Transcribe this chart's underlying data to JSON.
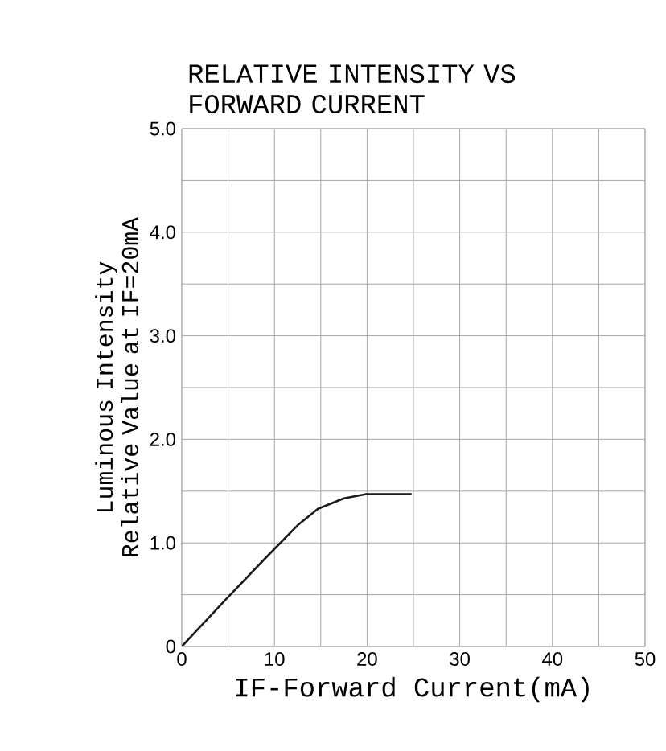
{
  "chart_data": {
    "type": "line",
    "title": "RELATIVE INTENSITY VS FORWARD CURRENT",
    "xlabel": "IF-Forward  Current(mA)",
    "ylabel": "Luminous Intensity Relative Value at IF=20mA",
    "x": [
      0,
      4.6,
      9.1,
      12.5,
      14.7,
      17.5,
      19.8,
      24.8
    ],
    "series": [
      {
        "color": "#1a1a1a",
        "values": [
          0,
          0.44,
          0.86,
          1.17,
          1.33,
          1.43,
          1.47,
          1.47
        ]
      }
    ],
    "xlim": [
      0,
      50
    ],
    "ylim": [
      0,
      5
    ],
    "xticks": [
      0,
      {
        "value": 5,
        "label": null
      },
      10,
      {
        "value": 15,
        "label": null
      },
      20,
      {
        "value": 25,
        "label": null
      },
      30,
      {
        "value": 35,
        "label": null
      },
      40,
      {
        "value": 45,
        "label": null
      },
      50
    ],
    "yticks": [
      0,
      {
        "value": 0.5,
        "label": null
      },
      {
        "value": 1,
        "label": "1.0"
      },
      {
        "value": 1.5,
        "label": null
      },
      {
        "value": 2,
        "label": "2.0"
      },
      {
        "value": 2.5,
        "label": null
      },
      {
        "value": 3,
        "label": "3.0"
      },
      {
        "value": 3.5,
        "label": null
      },
      {
        "value": 4,
        "label": "4.0"
      },
      {
        "value": 4.5,
        "label": null
      },
      {
        "value": 5,
        "label": "5.0"
      }
    ],
    "grid": true,
    "marker": "none",
    "line_style": "solid"
  }
}
